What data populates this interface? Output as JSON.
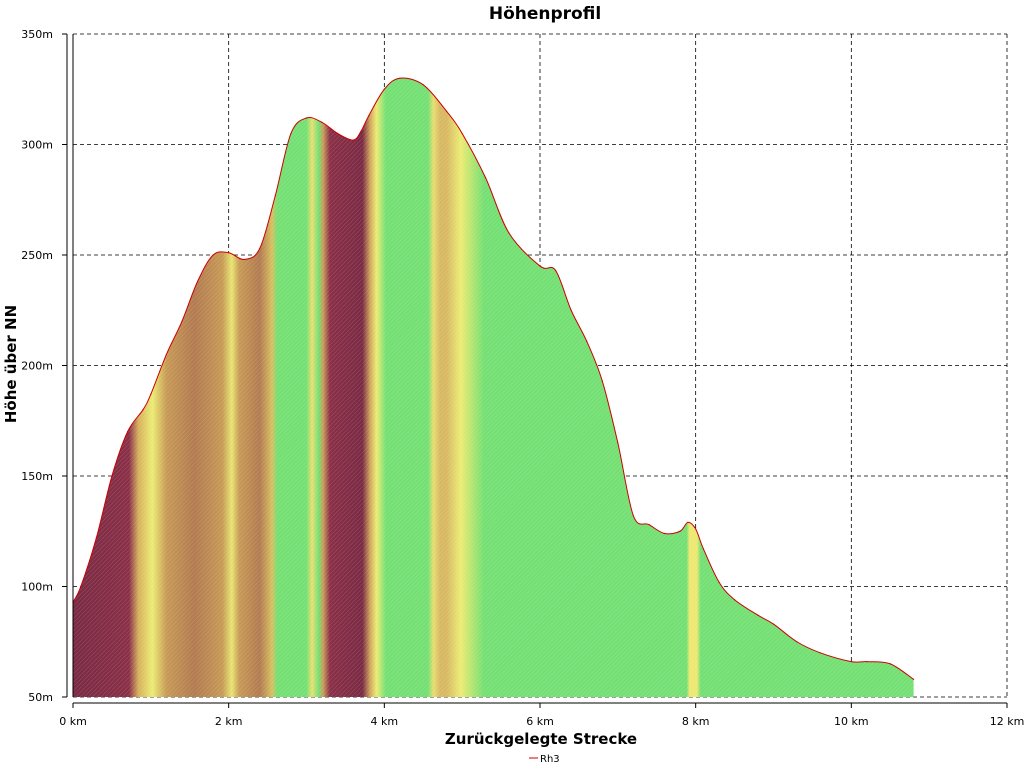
{
  "chart_data": {
    "type": "area",
    "title": "Höhenprofil",
    "xlabel": "Zurückgelegte Strecke",
    "ylabel": "Höhe über NN",
    "xlim": [
      0,
      12
    ],
    "ylim": [
      50,
      350
    ],
    "x_ticks": [
      0,
      2,
      4,
      6,
      8,
      10,
      12
    ],
    "x_tick_labels": [
      "0 km",
      "2 km",
      "4 km",
      "6 km",
      "8 km",
      "10 km",
      "12 km"
    ],
    "y_ticks": [
      50,
      100,
      150,
      200,
      250,
      300,
      350
    ],
    "y_tick_labels": [
      "50m",
      "100m",
      "150m",
      "200m",
      "250m",
      "300m",
      "350m"
    ],
    "grid": true,
    "legend_position": "bottom-center",
    "series": [
      {
        "name": "Rh3",
        "color": "#cc0000",
        "x": [
          0,
          0.1,
          0.3,
          0.5,
          0.7,
          0.9,
          1.0,
          1.2,
          1.4,
          1.6,
          1.8,
          2.0,
          2.2,
          2.4,
          2.6,
          2.8,
          3.0,
          3.2,
          3.4,
          3.6,
          3.7,
          3.8,
          4.0,
          4.2,
          4.5,
          4.8,
          5.0,
          5.3,
          5.6,
          6.0,
          6.2,
          6.4,
          6.6,
          6.8,
          7.0,
          7.2,
          7.4,
          7.6,
          7.8,
          7.9,
          8.0,
          8.1,
          8.3,
          8.5,
          8.8,
          9.0,
          9.3,
          9.6,
          10.0,
          10.2,
          10.5,
          10.8
        ],
        "y": [
          93,
          100,
          122,
          150,
          170,
          180,
          187,
          205,
          220,
          238,
          250,
          251,
          248,
          253,
          277,
          305,
          312,
          310,
          305,
          302,
          306,
          313,
          325,
          330,
          327,
          315,
          305,
          285,
          260,
          245,
          243,
          225,
          211,
          193,
          165,
          132,
          128,
          124,
          125,
          129,
          126,
          117,
          102,
          94,
          87,
          83,
          75,
          70,
          66,
          66,
          65,
          58
        ]
      }
    ]
  }
}
